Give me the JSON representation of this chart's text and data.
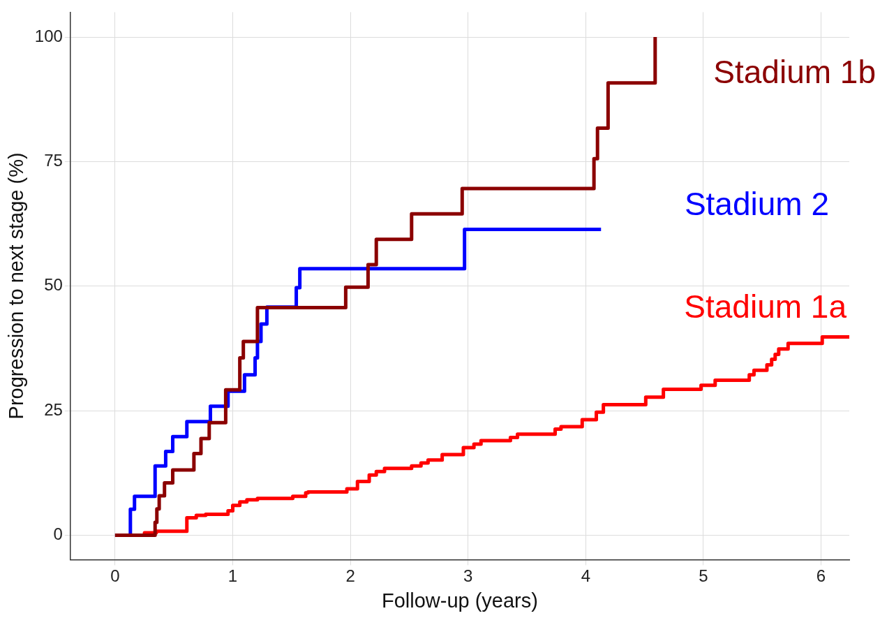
{
  "chart_data": {
    "type": "step",
    "xlabel": "Follow-up (years)",
    "ylabel": "Progression to next stage (%)",
    "xlim": [
      -0.38,
      6.24
    ],
    "xticks": [
      0,
      1,
      2,
      3,
      4,
      5,
      6
    ],
    "ylim": [
      -4.9,
      105
    ],
    "yticks": [
      0,
      25,
      50,
      75,
      100
    ],
    "grid": true,
    "legend": false,
    "series": [
      {
        "name": "Stadium 1b",
        "color": "#8b0000",
        "x": [
          0,
          0.34,
          0.355,
          0.375,
          0.42,
          0.49,
          0.67,
          0.73,
          0.8,
          0.94,
          1.06,
          1.09,
          1.21,
          1.96,
          2.15,
          2.22,
          2.52,
          2.95,
          4.07,
          4.1,
          4.19,
          4.59
        ],
        "values": [
          0,
          2.6,
          5.3,
          7.9,
          10.5,
          13.1,
          16.4,
          19.4,
          22.6,
          29.2,
          35.6,
          38.9,
          45.7,
          49.8,
          54.3,
          59.4,
          64.5,
          69.6,
          75.6,
          81.7,
          90.8,
          100
        ]
      },
      {
        "name": "Stadium 2",
        "color": "#0000ff",
        "x": [
          0,
          0.13,
          0.165,
          0.34,
          0.43,
          0.49,
          0.61,
          0.81,
          0.96,
          1.1,
          1.19,
          1.21,
          1.24,
          1.29,
          1.54,
          1.57,
          2.97,
          4.13
        ],
        "values": [
          0,
          5.2,
          7.8,
          13.9,
          16.8,
          19.8,
          22.8,
          25.9,
          28.9,
          32.2,
          35.6,
          38.9,
          42.4,
          45.8,
          49.7,
          53.5,
          61.4,
          61.4
        ]
      },
      {
        "name": "Stadium 1a",
        "color": "#ff0000",
        "x": [
          0,
          0.25,
          0.35,
          0.61,
          0.69,
          0.77,
          0.96,
          1.0,
          1.06,
          1.12,
          1.21,
          1.51,
          1.62,
          1.64,
          1.97,
          2.06,
          2.16,
          2.22,
          2.29,
          2.52,
          2.6,
          2.66,
          2.78,
          2.96,
          3.05,
          3.11,
          3.36,
          3.42,
          3.74,
          3.79,
          3.97,
          4.09,
          4.15,
          4.51,
          4.66,
          4.98,
          5.1,
          5.39,
          5.43,
          5.54,
          5.58,
          5.61,
          5.64,
          5.72,
          6.01,
          6.24
        ],
        "values": [
          0,
          0.5,
          0.8,
          3.5,
          4,
          4.2,
          4.9,
          6,
          6.7,
          7.1,
          7.4,
          7.8,
          8.5,
          8.7,
          9.3,
          10.8,
          12.1,
          12.8,
          13.4,
          13.9,
          14.5,
          15.1,
          16.2,
          17.6,
          18.3,
          19,
          19.6,
          20.3,
          21.3,
          21.8,
          23.2,
          24.7,
          26.2,
          27.7,
          29.3,
          30.1,
          31.1,
          32.2,
          33.1,
          34.2,
          35.3,
          36.3,
          37.4,
          38.5,
          39.8,
          39.8
        ]
      }
    ]
  }
}
